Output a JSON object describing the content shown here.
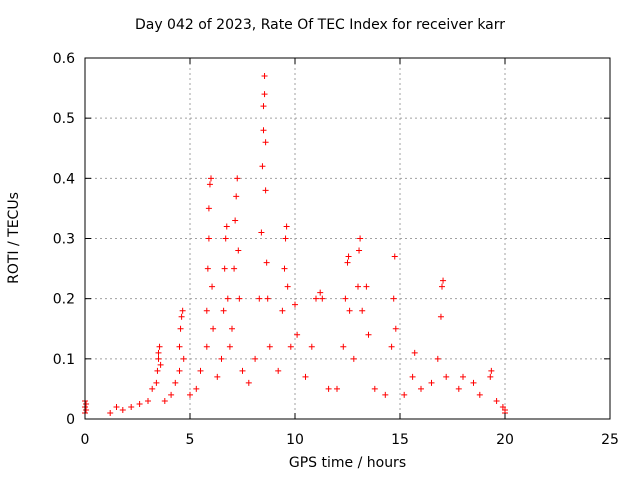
{
  "chart_data": {
    "type": "scatter",
    "title": "Day 042 of 2023, Rate Of TEC Index for receiver karr",
    "xlabel": "GPS time / hours",
    "ylabel": "ROTI / TECUs",
    "xlim": [
      0,
      25
    ],
    "ylim": [
      0,
      0.6
    ],
    "xticks": [
      "0",
      "5",
      "10",
      "15",
      "20",
      "25"
    ],
    "yticks": [
      "0",
      "0.1",
      "0.2",
      "0.3",
      "0.4",
      "0.5",
      "0.6"
    ],
    "grid": true,
    "marker": "+",
    "color": "#ff0000",
    "series": [
      {
        "points": [
          [
            0.0,
            0.01
          ],
          [
            0.0,
            0.02
          ],
          [
            0.0,
            0.03
          ],
          [
            0.05,
            0.015
          ],
          [
            0.05,
            0.025
          ],
          [
            1.2,
            0.01
          ],
          [
            1.5,
            0.02
          ],
          [
            1.8,
            0.015
          ],
          [
            2.2,
            0.02
          ],
          [
            2.6,
            0.025
          ],
          [
            3.0,
            0.03
          ],
          [
            3.2,
            0.05
          ],
          [
            3.4,
            0.06
          ],
          [
            3.45,
            0.08
          ],
          [
            3.5,
            0.1
          ],
          [
            3.5,
            0.11
          ],
          [
            3.55,
            0.12
          ],
          [
            3.6,
            0.09
          ],
          [
            3.8,
            0.03
          ],
          [
            4.1,
            0.04
          ],
          [
            4.3,
            0.06
          ],
          [
            4.5,
            0.08
          ],
          [
            4.5,
            0.12
          ],
          [
            4.55,
            0.15
          ],
          [
            4.6,
            0.17
          ],
          [
            4.65,
            0.18
          ],
          [
            4.7,
            0.1
          ],
          [
            5.0,
            0.04
          ],
          [
            5.3,
            0.05
          ],
          [
            5.5,
            0.08
          ],
          [
            5.8,
            0.12
          ],
          [
            5.8,
            0.18
          ],
          [
            5.85,
            0.25
          ],
          [
            5.9,
            0.3
          ],
          [
            5.9,
            0.35
          ],
          [
            5.95,
            0.39
          ],
          [
            6.0,
            0.4
          ],
          [
            6.05,
            0.22
          ],
          [
            6.1,
            0.15
          ],
          [
            6.3,
            0.07
          ],
          [
            6.5,
            0.1
          ],
          [
            6.6,
            0.18
          ],
          [
            6.65,
            0.25
          ],
          [
            6.7,
            0.3
          ],
          [
            6.75,
            0.32
          ],
          [
            6.8,
            0.2
          ],
          [
            6.9,
            0.12
          ],
          [
            7.0,
            0.15
          ],
          [
            7.1,
            0.25
          ],
          [
            7.15,
            0.33
          ],
          [
            7.2,
            0.37
          ],
          [
            7.25,
            0.4
          ],
          [
            7.3,
            0.28
          ],
          [
            7.35,
            0.2
          ],
          [
            7.5,
            0.08
          ],
          [
            7.8,
            0.06
          ],
          [
            8.1,
            0.1
          ],
          [
            8.3,
            0.2
          ],
          [
            8.4,
            0.31
          ],
          [
            8.45,
            0.42
          ],
          [
            8.5,
            0.48
          ],
          [
            8.5,
            0.52
          ],
          [
            8.55,
            0.54
          ],
          [
            8.55,
            0.57
          ],
          [
            8.6,
            0.46
          ],
          [
            8.6,
            0.38
          ],
          [
            8.65,
            0.26
          ],
          [
            8.7,
            0.2
          ],
          [
            8.8,
            0.12
          ],
          [
            9.2,
            0.08
          ],
          [
            9.4,
            0.18
          ],
          [
            9.5,
            0.25
          ],
          [
            9.55,
            0.3
          ],
          [
            9.6,
            0.32
          ],
          [
            9.65,
            0.22
          ],
          [
            9.8,
            0.12
          ],
          [
            10.0,
            0.19
          ],
          [
            10.1,
            0.14
          ],
          [
            10.5,
            0.07
          ],
          [
            10.8,
            0.12
          ],
          [
            11.0,
            0.2
          ],
          [
            11.2,
            0.21
          ],
          [
            11.3,
            0.2
          ],
          [
            11.6,
            0.05
          ],
          [
            12.0,
            0.05
          ],
          [
            12.3,
            0.12
          ],
          [
            12.4,
            0.2
          ],
          [
            12.5,
            0.26
          ],
          [
            12.55,
            0.27
          ],
          [
            12.6,
            0.18
          ],
          [
            12.8,
            0.1
          ],
          [
            13.0,
            0.22
          ],
          [
            13.05,
            0.28
          ],
          [
            13.1,
            0.3
          ],
          [
            13.2,
            0.18
          ],
          [
            13.4,
            0.22
          ],
          [
            13.5,
            0.14
          ],
          [
            13.8,
            0.05
          ],
          [
            14.3,
            0.04
          ],
          [
            14.6,
            0.12
          ],
          [
            14.7,
            0.2
          ],
          [
            14.75,
            0.27
          ],
          [
            14.8,
            0.15
          ],
          [
            15.2,
            0.04
          ],
          [
            15.6,
            0.07
          ],
          [
            15.7,
            0.11
          ],
          [
            16.0,
            0.05
          ],
          [
            16.5,
            0.06
          ],
          [
            16.8,
            0.1
          ],
          [
            16.95,
            0.17
          ],
          [
            17.0,
            0.22
          ],
          [
            17.05,
            0.23
          ],
          [
            17.2,
            0.07
          ],
          [
            17.8,
            0.05
          ],
          [
            18.0,
            0.07
          ],
          [
            18.5,
            0.06
          ],
          [
            18.8,
            0.04
          ],
          [
            19.3,
            0.07
          ],
          [
            19.35,
            0.08
          ],
          [
            19.6,
            0.03
          ],
          [
            19.9,
            0.02
          ],
          [
            20.0,
            0.01
          ],
          [
            20.0,
            0.015
          ]
        ]
      }
    ]
  }
}
